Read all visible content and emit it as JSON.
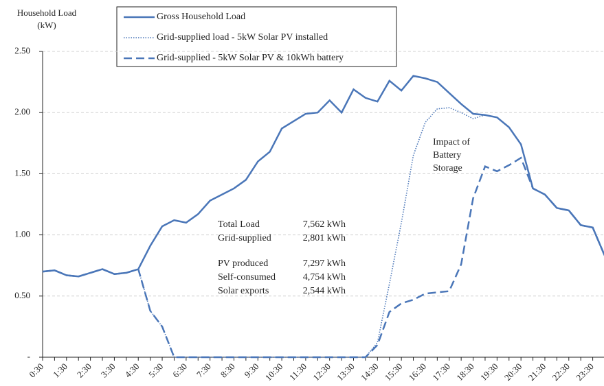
{
  "chart_data": {
    "type": "line",
    "ylabel": [
      "Household Load",
      "(kW)"
    ],
    "categories": [
      "0:30",
      null,
      "1:30",
      null,
      "2:30",
      null,
      "3:30",
      null,
      "4:30",
      null,
      "5:30",
      null,
      "6:30",
      null,
      "7:30",
      null,
      "8:30",
      null,
      "9:30",
      null,
      "10:30",
      null,
      "11:30",
      null,
      "12:30",
      null,
      "13:30",
      null,
      "14:30",
      null,
      "15:30",
      null,
      "16:30",
      null,
      "17:30",
      null,
      "18:30",
      null,
      "19:30",
      null,
      "20:30",
      null,
      "21:30",
      null,
      "22:30",
      null,
      "23:30",
      null
    ],
    "series": [
      {
        "name": "Gross Household Load",
        "color": "#4a76b8",
        "dash": "solid",
        "values": [
          0.7,
          0.71,
          0.67,
          0.66,
          0.69,
          0.72,
          0.68,
          0.69,
          0.72,
          0.91,
          1.07,
          1.12,
          1.1,
          1.17,
          1.28,
          1.33,
          1.38,
          1.45,
          1.6,
          1.68,
          1.87,
          1.93,
          1.99,
          2.0,
          2.1,
          2.0,
          2.19,
          2.12,
          2.09,
          2.26,
          2.18,
          2.3,
          2.28,
          2.25,
          2.16,
          2.07,
          1.99,
          1.98,
          1.96,
          1.88,
          1.74,
          1.38,
          1.33,
          1.22,
          1.2,
          1.08,
          1.06,
          0.83
        ]
      },
      {
        "name": "Grid-supplied load - 5kW Solar PV installed",
        "color": "#4a76b8",
        "dash": "dotted",
        "values": [
          0.7,
          0.71,
          0.67,
          0.66,
          0.69,
          0.72,
          0.68,
          0.69,
          0.72,
          0.38,
          0.25,
          0,
          0,
          0,
          0,
          0,
          0,
          0,
          0,
          0,
          0,
          0,
          0,
          0,
          0,
          0,
          0,
          0,
          0.12,
          0.6,
          1.1,
          1.65,
          1.92,
          2.03,
          2.04,
          2.0,
          1.95,
          1.98,
          1.96,
          1.88,
          1.74,
          1.38,
          1.33,
          1.22,
          1.2,
          1.08,
          1.06,
          0.83
        ]
      },
      {
        "name": "Grid-supplied - 5kW Solar PV & 10kWh battery",
        "color": "#4a76b8",
        "dash": "dashed",
        "values": [
          0.7,
          0.71,
          0.67,
          0.66,
          0.69,
          0.72,
          0.68,
          0.69,
          0.72,
          0.38,
          0.25,
          0,
          0,
          0,
          0,
          0,
          0,
          0,
          0,
          0,
          0,
          0,
          0,
          0,
          0,
          0,
          0,
          0,
          0.1,
          0.37,
          0.44,
          0.47,
          0.52,
          0.53,
          0.54,
          0.76,
          1.3,
          1.56,
          1.52,
          1.57,
          1.63,
          1.38,
          1.33,
          1.22,
          1.2,
          1.08,
          1.06,
          0.83
        ]
      }
    ],
    "ylim": [
      0,
      2.5
    ],
    "yticks": [
      {
        "value": 0,
        "label": "-"
      },
      {
        "value": 0.5,
        "label": "0.50"
      },
      {
        "value": 1,
        "label": "1.00"
      },
      {
        "value": 1.5,
        "label": "1.50"
      },
      {
        "value": 2,
        "label": "2.00"
      },
      {
        "value": 2.5,
        "label": "2.50"
      }
    ],
    "grid": true,
    "annotations": {
      "battery_impact": [
        "Impact of",
        "Battery",
        "Storage"
      ],
      "stats": [
        [
          "Total Load",
          "7,562 kWh"
        ],
        [
          "Grid-supplied",
          "2,801 kWh"
        ],
        [
          "PV produced",
          "7,297 kWh"
        ],
        [
          "Self-consumed",
          "4,754 kWh"
        ],
        [
          "Solar exports",
          "2,544 kWh"
        ]
      ]
    }
  }
}
